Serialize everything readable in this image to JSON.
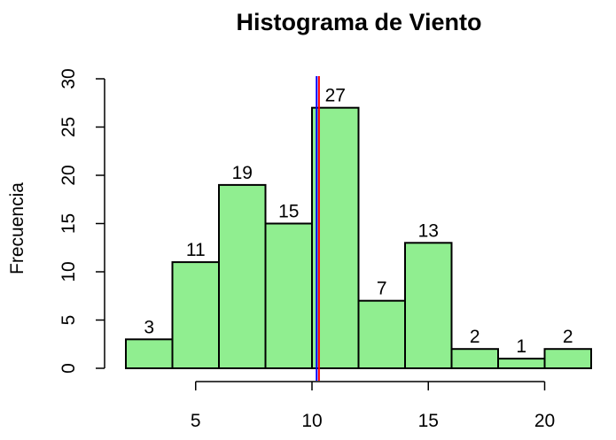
{
  "chart_data": {
    "type": "bar",
    "title": "Histograma de Viento",
    "xlabel": "",
    "ylabel": "Frecuencia",
    "bins": [
      [
        2,
        4
      ],
      [
        4,
        6
      ],
      [
        6,
        8
      ],
      [
        8,
        10
      ],
      [
        10,
        12
      ],
      [
        12,
        14
      ],
      [
        14,
        16
      ],
      [
        16,
        18
      ],
      [
        18,
        20
      ],
      [
        20,
        22
      ]
    ],
    "values": [
      3,
      11,
      19,
      15,
      27,
      7,
      13,
      2,
      1,
      2
    ],
    "xticks": [
      5,
      10,
      15,
      20
    ],
    "yticks": [
      0,
      5,
      10,
      15,
      20,
      25,
      30
    ],
    "xlim": [
      2,
      22
    ],
    "ylim": [
      0,
      30
    ],
    "bar_color": "#90EE90",
    "bar_border": "#000000",
    "reference_lines": [
      {
        "value": 10.2,
        "color": "#0000FF"
      },
      {
        "value": 10.3,
        "color": "#FF0000"
      }
    ],
    "grid": false,
    "data_labels": true
  }
}
